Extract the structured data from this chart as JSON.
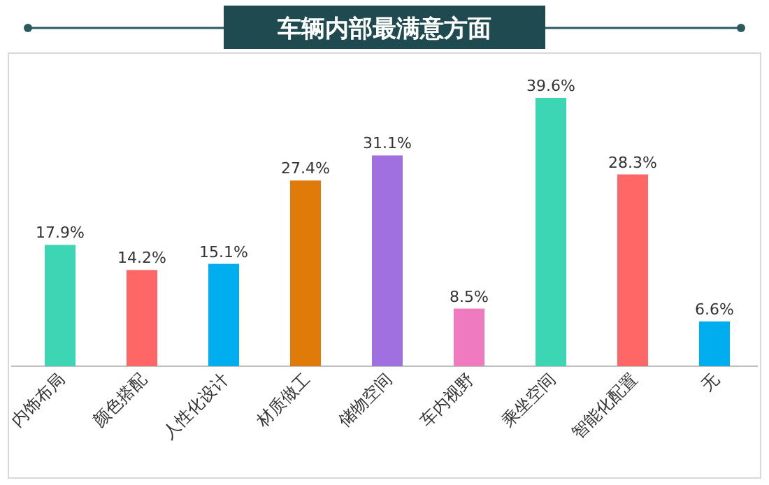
{
  "chart_data": {
    "type": "bar",
    "title": "车辆内部最满意方面",
    "categories": [
      "内饰布局",
      "颜色搭配",
      "人性化设计",
      "材质做工",
      "储物空间",
      "车内视野",
      "乘坐空间",
      "智能化配置",
      "无"
    ],
    "values": [
      17.9,
      14.2,
      15.1,
      27.4,
      31.1,
      8.5,
      39.6,
      28.3,
      6.6
    ],
    "value_labels": [
      "17.9%",
      "14.2%",
      "15.1%",
      "27.4%",
      "31.1%",
      "8.5%",
      "39.6%",
      "28.3%",
      "6.6%"
    ],
    "colors": [
      "#3dd6b5",
      "#ff6666",
      "#00aeef",
      "#e07b0a",
      "#a070e0",
      "#f07ac0",
      "#3dd6b5",
      "#ff6666",
      "#00aeef"
    ]
  }
}
